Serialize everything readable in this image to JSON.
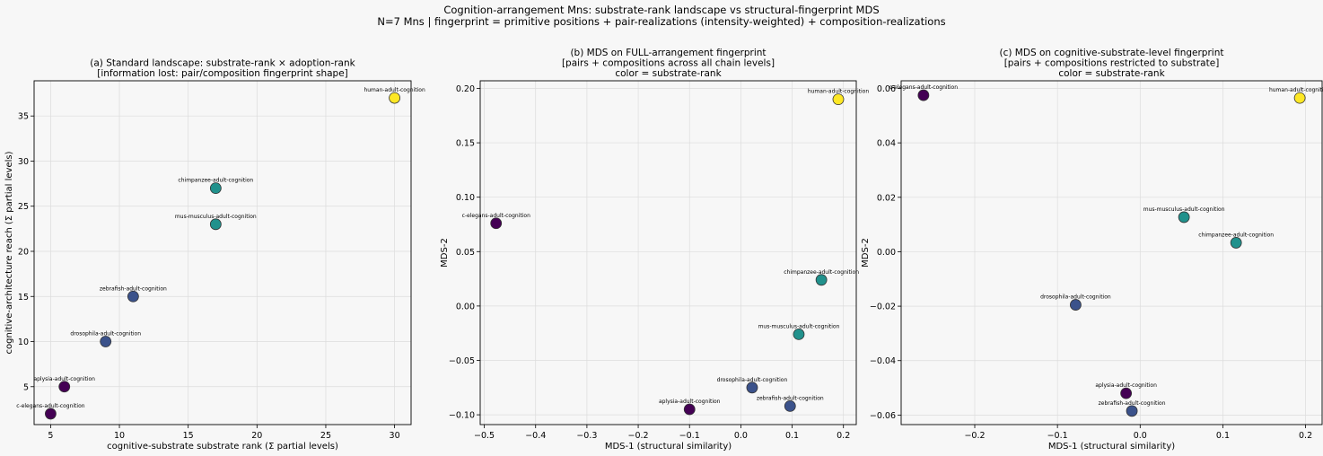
{
  "suptitle": {
    "line1": "Cognition-arrangement Mns: substrate-rank landscape vs structural-fingerprint MDS",
    "line2": "N=7 Mns | fingerprint = primitive positions + pair-realizations (intensity-weighted) + composition-realizations"
  },
  "colors": {
    "rank_low": "#440154",
    "rank_lowmid": "#3b528b",
    "rank_mid": "#21918c",
    "rank_high": "#fde725"
  },
  "chart_data": [
    {
      "type": "scatter",
      "title_lines": [
        "(a) Standard landscape: substrate-rank × adoption-rank",
        "[information lost: pair/composition fingerprint shape]"
      ],
      "xlabel": "cognitive-substrate substrate rank (Σ partial levels)",
      "ylabel": "cognitive-architecture reach (Σ partial levels)",
      "xlim": [
        3.8,
        31.2
      ],
      "ylim": [
        0.8,
        38.9
      ],
      "xticks": [
        5,
        10,
        15,
        20,
        25,
        30
      ],
      "yticks": [
        5,
        10,
        15,
        20,
        25,
        30,
        35
      ],
      "grid": true,
      "points": [
        {
          "label": "human-adult-cognition",
          "x": 30,
          "y": 37,
          "color": "#fde725"
        },
        {
          "label": "chimpanzee-adult-cognition",
          "x": 17,
          "y": 27,
          "color": "#21918c"
        },
        {
          "label": "mus-musculus-adult-cognition",
          "x": 17,
          "y": 23,
          "color": "#21918c"
        },
        {
          "label": "zebrafish-adult-cognition",
          "x": 11,
          "y": 15,
          "color": "#3b528b"
        },
        {
          "label": "drosophila-adult-cognition",
          "x": 9,
          "y": 10,
          "color": "#3b528b"
        },
        {
          "label": "aplysia-adult-cognition",
          "x": 6,
          "y": 5,
          "color": "#440154"
        },
        {
          "label": "c-elegans-adult-cognition",
          "x": 5,
          "y": 2,
          "color": "#440154"
        }
      ]
    },
    {
      "type": "scatter",
      "title_lines": [
        "(b) MDS on FULL-arrangement fingerprint",
        "[pairs + compositions across all chain levels]",
        "color = substrate-rank"
      ],
      "xlabel": "MDS-1 (structural similarity)",
      "ylabel": "MDS-2",
      "xlim": [
        -0.508,
        0.225
      ],
      "ylim": [
        -0.109,
        0.207
      ],
      "xticks": [
        -0.5,
        -0.4,
        -0.3,
        -0.2,
        -0.1,
        0.0,
        0.1,
        0.2
      ],
      "xticklabels": [
        "−0.5",
        "−0.4",
        "−0.3",
        "−0.2",
        "−0.1",
        "0.0",
        "0.1",
        "0.2"
      ],
      "yticks": [
        -0.1,
        -0.05,
        0.0,
        0.05,
        0.1,
        0.15,
        0.2
      ],
      "yticklabels": [
        "−0.10",
        "−0.05",
        "0.00",
        "0.05",
        "0.10",
        "0.15",
        "0.20"
      ],
      "grid": true,
      "points": [
        {
          "label": "human-adult-cognition",
          "x": 0.19,
          "y": 0.19,
          "color": "#fde725"
        },
        {
          "label": "c-elegans-adult-cognition",
          "x": -0.477,
          "y": 0.076,
          "color": "#440154"
        },
        {
          "label": "chimpanzee-adult-cognition",
          "x": 0.157,
          "y": 0.024,
          "color": "#21918c"
        },
        {
          "label": "mus-musculus-adult-cognition",
          "x": 0.113,
          "y": -0.026,
          "color": "#21918c"
        },
        {
          "label": "drosophila-adult-cognition",
          "x": 0.022,
          "y": -0.075,
          "color": "#3b528b"
        },
        {
          "label": "zebrafish-adult-cognition",
          "x": 0.096,
          "y": -0.092,
          "color": "#3b528b"
        },
        {
          "label": "aplysia-adult-cognition",
          "x": -0.1,
          "y": -0.095,
          "color": "#440154"
        }
      ]
    },
    {
      "type": "scatter",
      "title_lines": [
        "(c) MDS on cognitive-substrate-level fingerprint",
        "[pairs + compositions restricted to substrate]",
        "color = substrate-rank"
      ],
      "xlabel": "MDS-1 (structural similarity)",
      "ylabel": "MDS-2",
      "xlim": [
        -0.289,
        0.22
      ],
      "ylim": [
        -0.0635,
        0.0628
      ],
      "xticks": [
        -0.2,
        -0.1,
        0.0,
        0.1,
        0.2
      ],
      "xticklabels": [
        "−0.2",
        "−0.1",
        "0.0",
        "0.1",
        "0.2"
      ],
      "yticks": [
        -0.06,
        -0.04,
        -0.02,
        0.0,
        0.02,
        0.04,
        0.06
      ],
      "yticklabels": [
        "−0.06",
        "−0.04",
        "−0.02",
        "0.00",
        "0.02",
        "0.04",
        "0.06"
      ],
      "grid": true,
      "points": [
        {
          "label": "c-elegans-adult-cognition",
          "x": -0.262,
          "y": 0.0575,
          "color": "#440154"
        },
        {
          "label": "human-adult-cognition",
          "x": 0.193,
          "y": 0.0565,
          "color": "#fde725"
        },
        {
          "label": "mus-musculus-adult-cognition",
          "x": 0.053,
          "y": 0.0127,
          "color": "#21918c"
        },
        {
          "label": "chimpanzee-adult-cognition",
          "x": 0.116,
          "y": 0.0033,
          "color": "#21918c"
        },
        {
          "label": "drosophila-adult-cognition",
          "x": -0.078,
          "y": -0.0195,
          "color": "#3b528b"
        },
        {
          "label": "aplysia-adult-cognition",
          "x": -0.017,
          "y": -0.052,
          "color": "#440154"
        },
        {
          "label": "zebrafish-adult-cognition",
          "x": -0.01,
          "y": -0.0585,
          "color": "#3b528b"
        }
      ]
    }
  ]
}
